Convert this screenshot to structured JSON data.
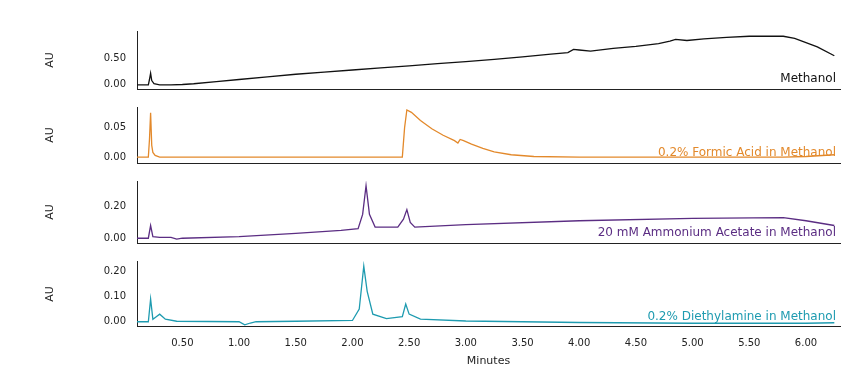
{
  "chart_data": [
    {
      "type": "line",
      "y_label": "AU",
      "annotation": "Methanol",
      "tick_labels": "y",
      "grid": false,
      "xlim": [
        0.1,
        6.3
      ],
      "ylim": [
        -0.08,
        1.02
      ],
      "yticks": [
        {
          "value": 0,
          "label": "0.00"
        },
        {
          "value": 0.5,
          "label": "0.50"
        }
      ],
      "x": [
        0.1,
        0.2,
        0.21,
        0.22,
        0.23,
        0.25,
        0.3,
        0.4,
        0.5,
        0.6,
        0.8,
        1.0,
        1.25,
        1.5,
        1.75,
        2.0,
        2.25,
        2.5,
        2.75,
        3.0,
        3.25,
        3.5,
        3.75,
        3.9,
        3.95,
        4.0,
        4.1,
        4.3,
        4.5,
        4.7,
        4.8,
        4.85,
        4.95,
        5.1,
        5.3,
        5.5,
        5.8,
        5.9,
        6.0,
        6.1,
        6.25
      ],
      "series": [
        {
          "color": "#111111",
          "values": [
            0.0,
            0.0,
            0.1,
            0.22,
            0.08,
            0.02,
            0.0,
            0.0,
            0.005,
            0.02,
            0.06,
            0.1,
            0.15,
            0.2,
            0.24,
            0.28,
            0.32,
            0.36,
            0.4,
            0.44,
            0.48,
            0.53,
            0.58,
            0.61,
            0.67,
            0.66,
            0.64,
            0.69,
            0.73,
            0.78,
            0.83,
            0.86,
            0.84,
            0.87,
            0.9,
            0.92,
            0.92,
            0.88,
            0.8,
            0.72,
            0.55
          ]
        }
      ]
    },
    {
      "type": "line",
      "y_label": "AU",
      "annotation": "0.2% Formic Acid in Methanol",
      "tick_labels": "y",
      "grid": false,
      "xlim": [
        0.1,
        6.3
      ],
      "ylim": [
        -0.01,
        0.085
      ],
      "yticks": [
        {
          "value": 0,
          "label": "0.00"
        },
        {
          "value": 0.05,
          "label": "0.05"
        }
      ],
      "x": [
        0.1,
        0.2,
        0.21,
        0.22,
        0.23,
        0.24,
        0.26,
        0.3,
        1.0,
        2.0,
        2.44,
        2.46,
        2.48,
        2.52,
        2.6,
        2.7,
        2.8,
        2.9,
        2.93,
        2.95,
        2.98,
        3.05,
        3.15,
        3.25,
        3.4,
        3.6,
        4.0,
        5.0,
        5.8,
        6.0,
        6.25
      ],
      "series": [
        {
          "color": "#e3892b",
          "values": [
            0,
            0,
            0.03,
            0.075,
            0.02,
            0.008,
            0.003,
            0,
            0,
            0,
            0,
            0.05,
            0.08,
            0.076,
            0.062,
            0.048,
            0.037,
            0.028,
            0.024,
            0.03,
            0.028,
            0.022,
            0.015,
            0.009,
            0.004,
            0.001,
            0,
            0,
            0,
            0.001,
            0.004
          ]
        }
      ]
    },
    {
      "type": "line",
      "y_label": "AU",
      "annotation": "20 mM Ammonium Acetate in Methanol",
      "tick_labels": "y",
      "grid": false,
      "xlim": [
        0.1,
        6.3
      ],
      "ylim": [
        -0.03,
        0.36
      ],
      "yticks": [
        {
          "value": 0,
          "label": "0.00"
        },
        {
          "value": 0.2,
          "label": "0.20"
        }
      ],
      "x": [
        0.1,
        0.2,
        0.22,
        0.24,
        0.3,
        0.4,
        0.45,
        0.5,
        1.0,
        1.5,
        1.9,
        2.05,
        2.09,
        2.12,
        2.15,
        2.2,
        2.4,
        2.45,
        2.48,
        2.51,
        2.55,
        3.0,
        4.0,
        5.0,
        5.8,
        6.0,
        6.25
      ],
      "series": [
        {
          "color": "#5b2d83",
          "values": [
            0,
            0,
            0.08,
            0.01,
            0.005,
            0.005,
            -0.005,
            0,
            0.01,
            0.03,
            0.05,
            0.06,
            0.15,
            0.33,
            0.15,
            0.07,
            0.07,
            0.12,
            0.18,
            0.1,
            0.07,
            0.085,
            0.11,
            0.125,
            0.13,
            0.11,
            0.08
          ]
        }
      ]
    },
    {
      "type": "line",
      "y_label": "AU",
      "x_label": "Minutes",
      "annotation": "0.2% Diethylamine in Methanol",
      "grid": false,
      "xlim": [
        0.1,
        6.3
      ],
      "ylim": [
        -0.02,
        0.24
      ],
      "xticks": [
        {
          "value": 0.5,
          "label": "0.50"
        },
        {
          "value": 1,
          "label": "1.00"
        },
        {
          "value": 1.5,
          "label": "1.50"
        },
        {
          "value": 2,
          "label": "2.00"
        },
        {
          "value": 2.5,
          "label": "2.50"
        },
        {
          "value": 3,
          "label": "3.00"
        },
        {
          "value": 3.5,
          "label": "3.50"
        },
        {
          "value": 4,
          "label": "4.00"
        },
        {
          "value": 4.5,
          "label": "4.50"
        },
        {
          "value": 5,
          "label": "5.00"
        },
        {
          "value": 5.5,
          "label": "5.50"
        },
        {
          "value": 6,
          "label": "6.00"
        }
      ],
      "yticks": [
        {
          "value": 0,
          "label": "0.00"
        },
        {
          "value": 0.1,
          "label": "0.10"
        },
        {
          "value": 0.2,
          "label": "0.20"
        }
      ],
      "x": [
        0.1,
        0.2,
        0.22,
        0.24,
        0.27,
        0.3,
        0.35,
        0.45,
        1.0,
        1.05,
        1.1,
        1.15,
        1.5,
        2.0,
        2.06,
        2.1,
        2.13,
        2.18,
        2.3,
        2.44,
        2.47,
        2.5,
        2.6,
        3.0,
        4.0,
        5.0,
        6.0,
        6.25
      ],
      "series": [
        {
          "color": "#1e9bb0",
          "values": [
            0,
            0,
            0.09,
            0.01,
            0.02,
            0.03,
            0.01,
            0.002,
            0,
            -0.012,
            -0.005,
            0,
            0.002,
            0.005,
            0.05,
            0.22,
            0.12,
            0.03,
            0.012,
            0.02,
            0.07,
            0.03,
            0.01,
            0.003,
            -0.003,
            -0.006,
            -0.006,
            -0.004
          ]
        }
      ]
    }
  ]
}
